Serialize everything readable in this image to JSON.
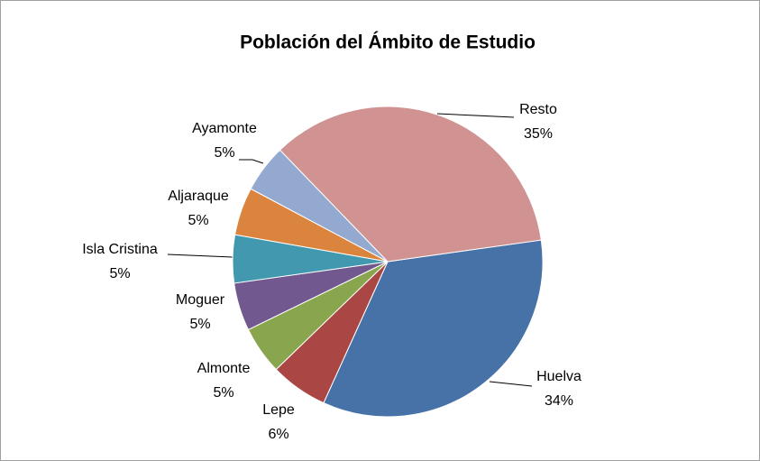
{
  "chart_data": {
    "type": "pie",
    "title": "Población del Ámbito de Estudio",
    "categories": [
      "Huelva",
      "Lepe",
      "Almonte",
      "Moguer",
      "Isla Cristina",
      "Aljaraque",
      "Ayamonte",
      "Resto"
    ],
    "values": [
      34,
      6,
      5,
      5,
      5,
      5,
      5,
      35
    ],
    "value_labels": [
      "34%",
      "6%",
      "5%",
      "5%",
      "5%",
      "5%",
      "5%",
      "35%"
    ],
    "colors": [
      "#4672a8",
      "#aa4643",
      "#89a54e",
      "#71588f",
      "#4198af",
      "#db843d",
      "#93a9cf",
      "#d09392"
    ]
  }
}
